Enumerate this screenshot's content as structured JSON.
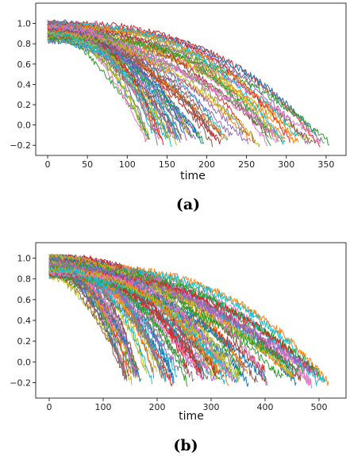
{
  "palette": [
    "#1f77b4",
    "#ff7f0e",
    "#2ca02c",
    "#d62728",
    "#9467bd",
    "#8c564b",
    "#e377c2",
    "#7f7f7f",
    "#bcbd22",
    "#17becf"
  ],
  "chart_data": [
    {
      "type": "line",
      "panel_label": "(a)",
      "xlabel": "time",
      "ylabel": "",
      "xlim": [
        -15,
        375
      ],
      "ylim": [
        -0.3,
        1.2
      ],
      "xticks": [
        0,
        50,
        100,
        150,
        200,
        250,
        300,
        350
      ],
      "yticks": [
        -0.2,
        0.0,
        0.2,
        0.4,
        0.6,
        0.8,
        1.0
      ],
      "xtick_labels": [
        "0",
        "50",
        "100",
        "150",
        "200",
        "250",
        "300",
        "350"
      ],
      "ytick_labels": [
        "−0.2",
        "0.0",
        "0.2",
        "0.4",
        "0.6",
        "0.8",
        "1.0"
      ],
      "grid": false,
      "legend": "none",
      "series_count": 80,
      "series_description": "Multiple noisy degradation trajectories; each starts near 0.8–1.05 at time 0 and decays non-linearly to about −0.2 to −0.05 at its end time",
      "end_time_range": [
        125,
        362
      ],
      "noise_amplitude": 0.025
    },
    {
      "type": "line",
      "panel_label": "(b)",
      "xlabel": "time",
      "ylabel": "",
      "xlim": [
        -25,
        550
      ],
      "ylim": [
        -0.35,
        1.15
      ],
      "xticks": [
        0,
        100,
        200,
        300,
        400,
        500
      ],
      "yticks": [
        -0.2,
        0.0,
        0.2,
        0.4,
        0.6,
        0.8,
        1.0
      ],
      "xtick_labels": [
        "0",
        "100",
        "200",
        "300",
        "400",
        "500"
      ],
      "ytick_labels": [
        "−0.2",
        "0.0",
        "0.2",
        "0.4",
        "0.6",
        "0.8",
        "1.0"
      ],
      "grid": false,
      "legend": "none",
      "series_count": 100,
      "series_description": "Multiple noisy degradation trajectories; each starts near 0.8–1.05 at time 0 and decays non-linearly to about −0.25 to −0.15 at its end time",
      "end_time_range": [
        140,
        525
      ],
      "noise_amplitude": 0.03
    }
  ]
}
